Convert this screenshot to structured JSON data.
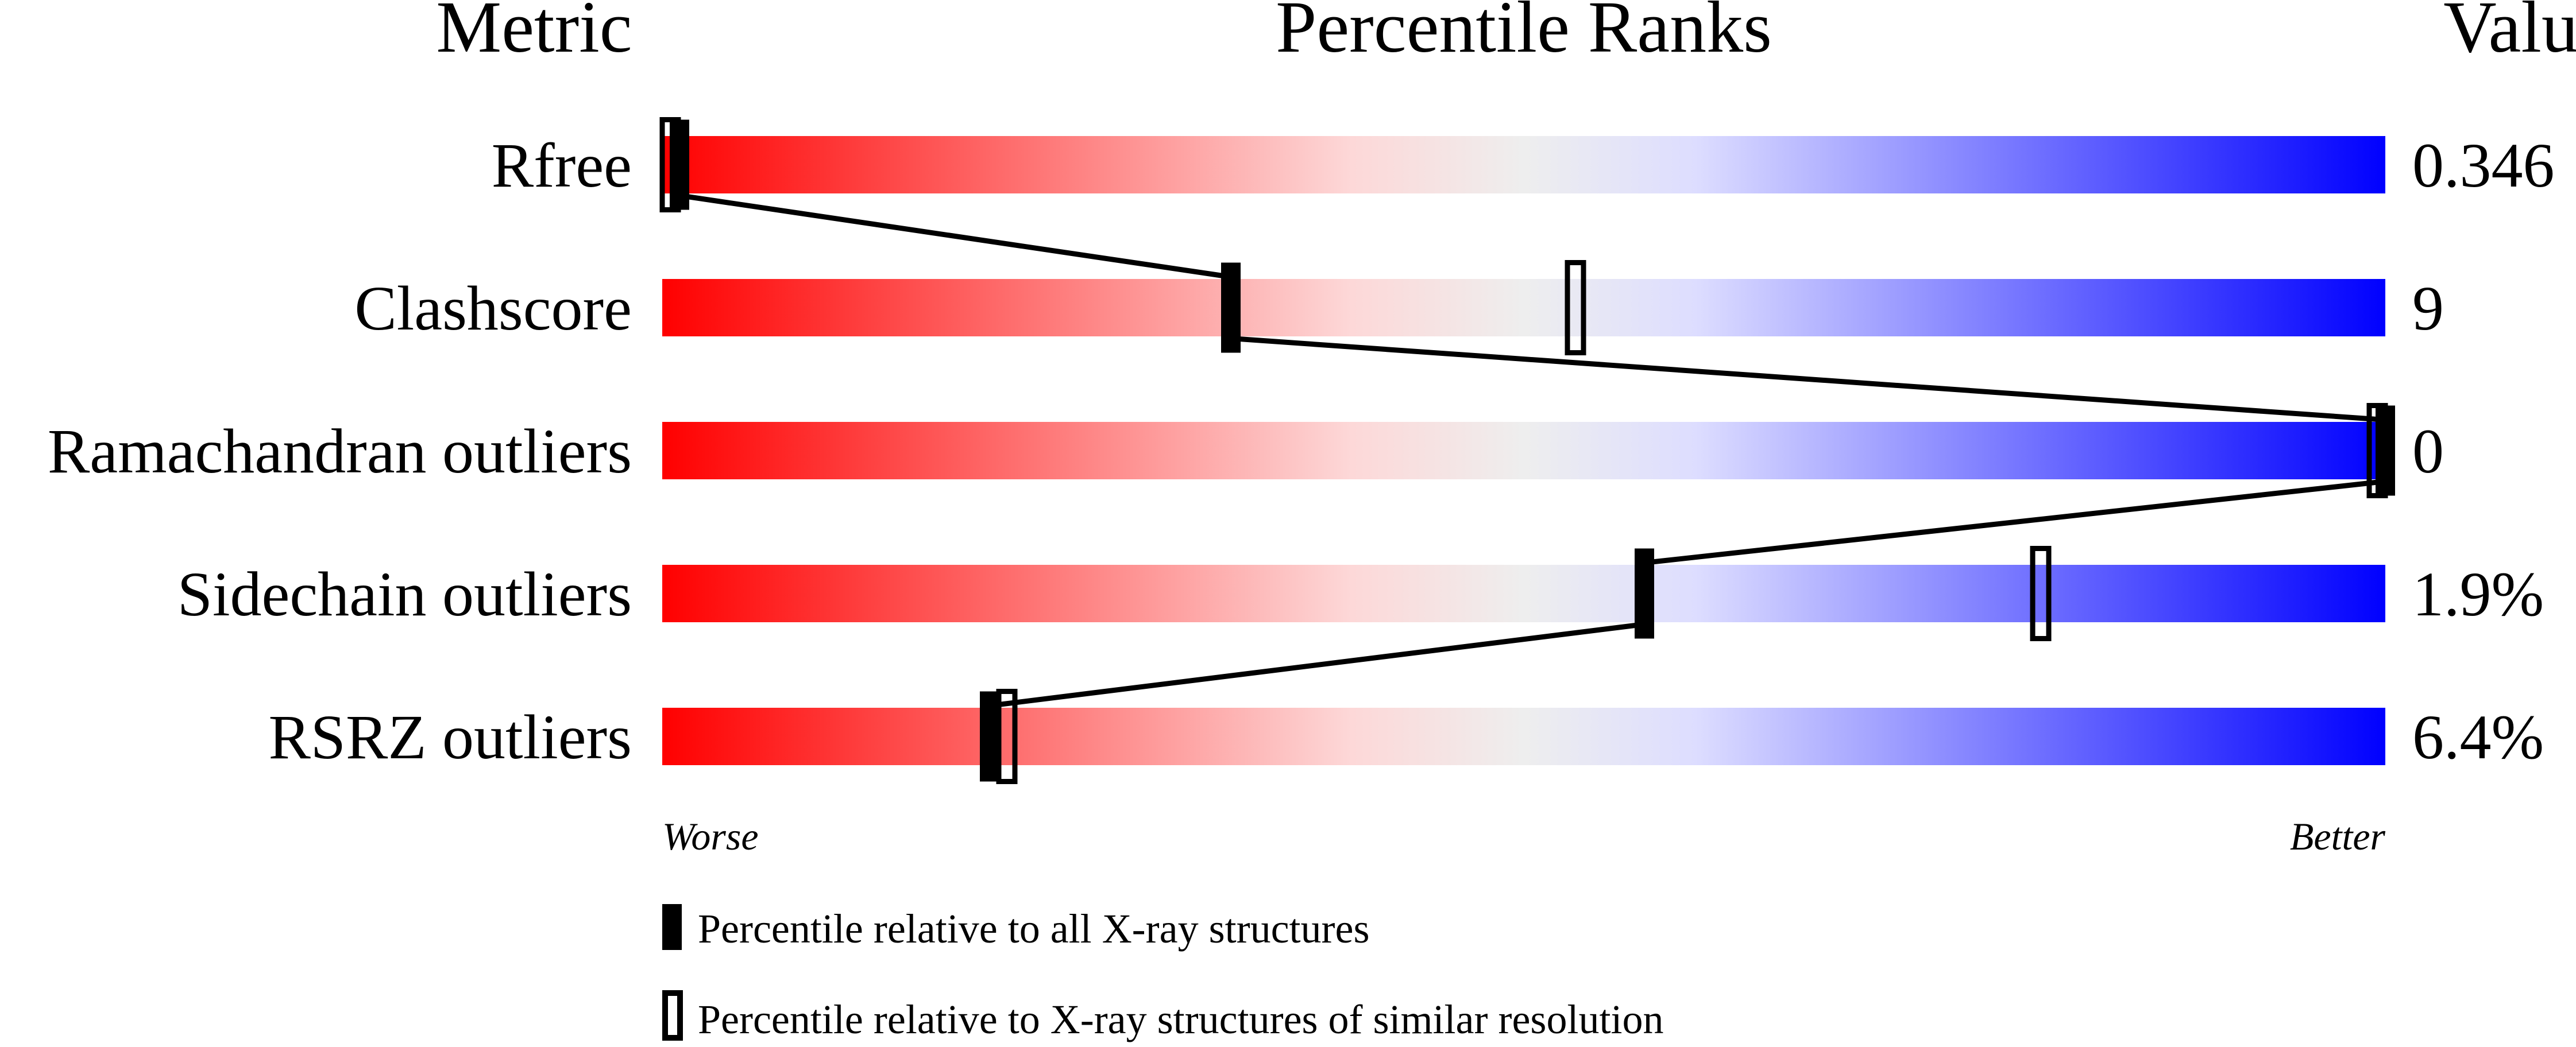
{
  "chart_data": {
    "type": "percentile-slider",
    "headers": {
      "metric": "Metric",
      "ranks": "Percentile Ranks",
      "value": "Value"
    },
    "xlim": [
      0,
      100
    ],
    "scale_labels": {
      "worse": "Worse",
      "better": "Better"
    },
    "gradient_colors": [
      "#ff0000",
      "#fdd8d8",
      "#eeeeee",
      "#ddddff",
      "#0000ff"
    ],
    "metrics": [
      {
        "name": "Rfree",
        "value": "0.346",
        "percentile_all": 1,
        "percentile_similar": 0
      },
      {
        "name": "Clashscore",
        "value": "9",
        "percentile_all": 33,
        "percentile_similar": 53
      },
      {
        "name": "Ramachandran outliers",
        "value": "0",
        "percentile_all": 100,
        "percentile_similar": 100
      },
      {
        "name": "Sidechain outliers",
        "value": "1.9%",
        "percentile_all": 57,
        "percentile_similar": 80
      },
      {
        "name": "RSRZ outliers",
        "value": "6.4%",
        "percentile_all": 19,
        "percentile_similar": 20
      }
    ],
    "legend": [
      {
        "marker": "filled",
        "label": "Percentile relative to all X-ray structures"
      },
      {
        "marker": "open",
        "label": "Percentile relative to X-ray structures of similar resolution"
      }
    ]
  }
}
